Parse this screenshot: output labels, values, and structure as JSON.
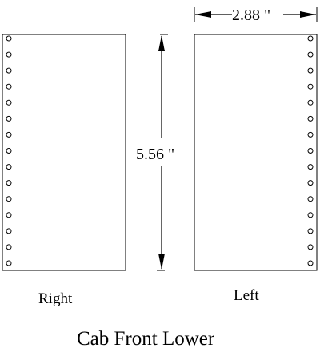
{
  "panels": {
    "right": {
      "label": "Right",
      "hole_count": 15
    },
    "left": {
      "label": "Left",
      "hole_count": 15
    }
  },
  "dimensions": {
    "width": "2.88 \"",
    "height": "5.56 \""
  },
  "title": "Cab Front Lower"
}
